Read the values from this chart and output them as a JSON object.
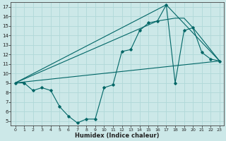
{
  "xlabel": "Humidex (Indice chaleur)",
  "bg_color": "#cce8e8",
  "grid_color": "#b0d8d8",
  "line_color": "#006666",
  "xlim": [
    -0.5,
    23.5
  ],
  "ylim": [
    4.5,
    17.5
  ],
  "xticks": [
    0,
    1,
    2,
    3,
    4,
    5,
    6,
    7,
    8,
    9,
    10,
    11,
    12,
    13,
    14,
    15,
    16,
    17,
    18,
    19,
    20,
    21,
    22,
    23
  ],
  "yticks": [
    5,
    6,
    7,
    8,
    9,
    10,
    11,
    12,
    13,
    14,
    15,
    16,
    17
  ],
  "line1_x": [
    0,
    1,
    2,
    3,
    4,
    5,
    6,
    7,
    8,
    9,
    10,
    11,
    12,
    13,
    14,
    15,
    16,
    17,
    18,
    19,
    20,
    21,
    22,
    23
  ],
  "line1_y": [
    9.0,
    9.0,
    8.2,
    8.5,
    8.2,
    6.5,
    5.5,
    4.8,
    5.2,
    5.2,
    8.5,
    8.8,
    12.3,
    12.5,
    14.5,
    15.3,
    15.5,
    17.2,
    9.0,
    14.5,
    14.8,
    12.2,
    11.5,
    11.3
  ],
  "line2_x": [
    0,
    17,
    23
  ],
  "line2_y": [
    9.0,
    17.2,
    11.3
  ],
  "line3_x": [
    0,
    16,
    18,
    19,
    20,
    23
  ],
  "line3_y": [
    9.0,
    15.5,
    15.8,
    15.8,
    14.8,
    11.3
  ],
  "line4_x": [
    0,
    23
  ],
  "line4_y": [
    9.0,
    11.3
  ]
}
